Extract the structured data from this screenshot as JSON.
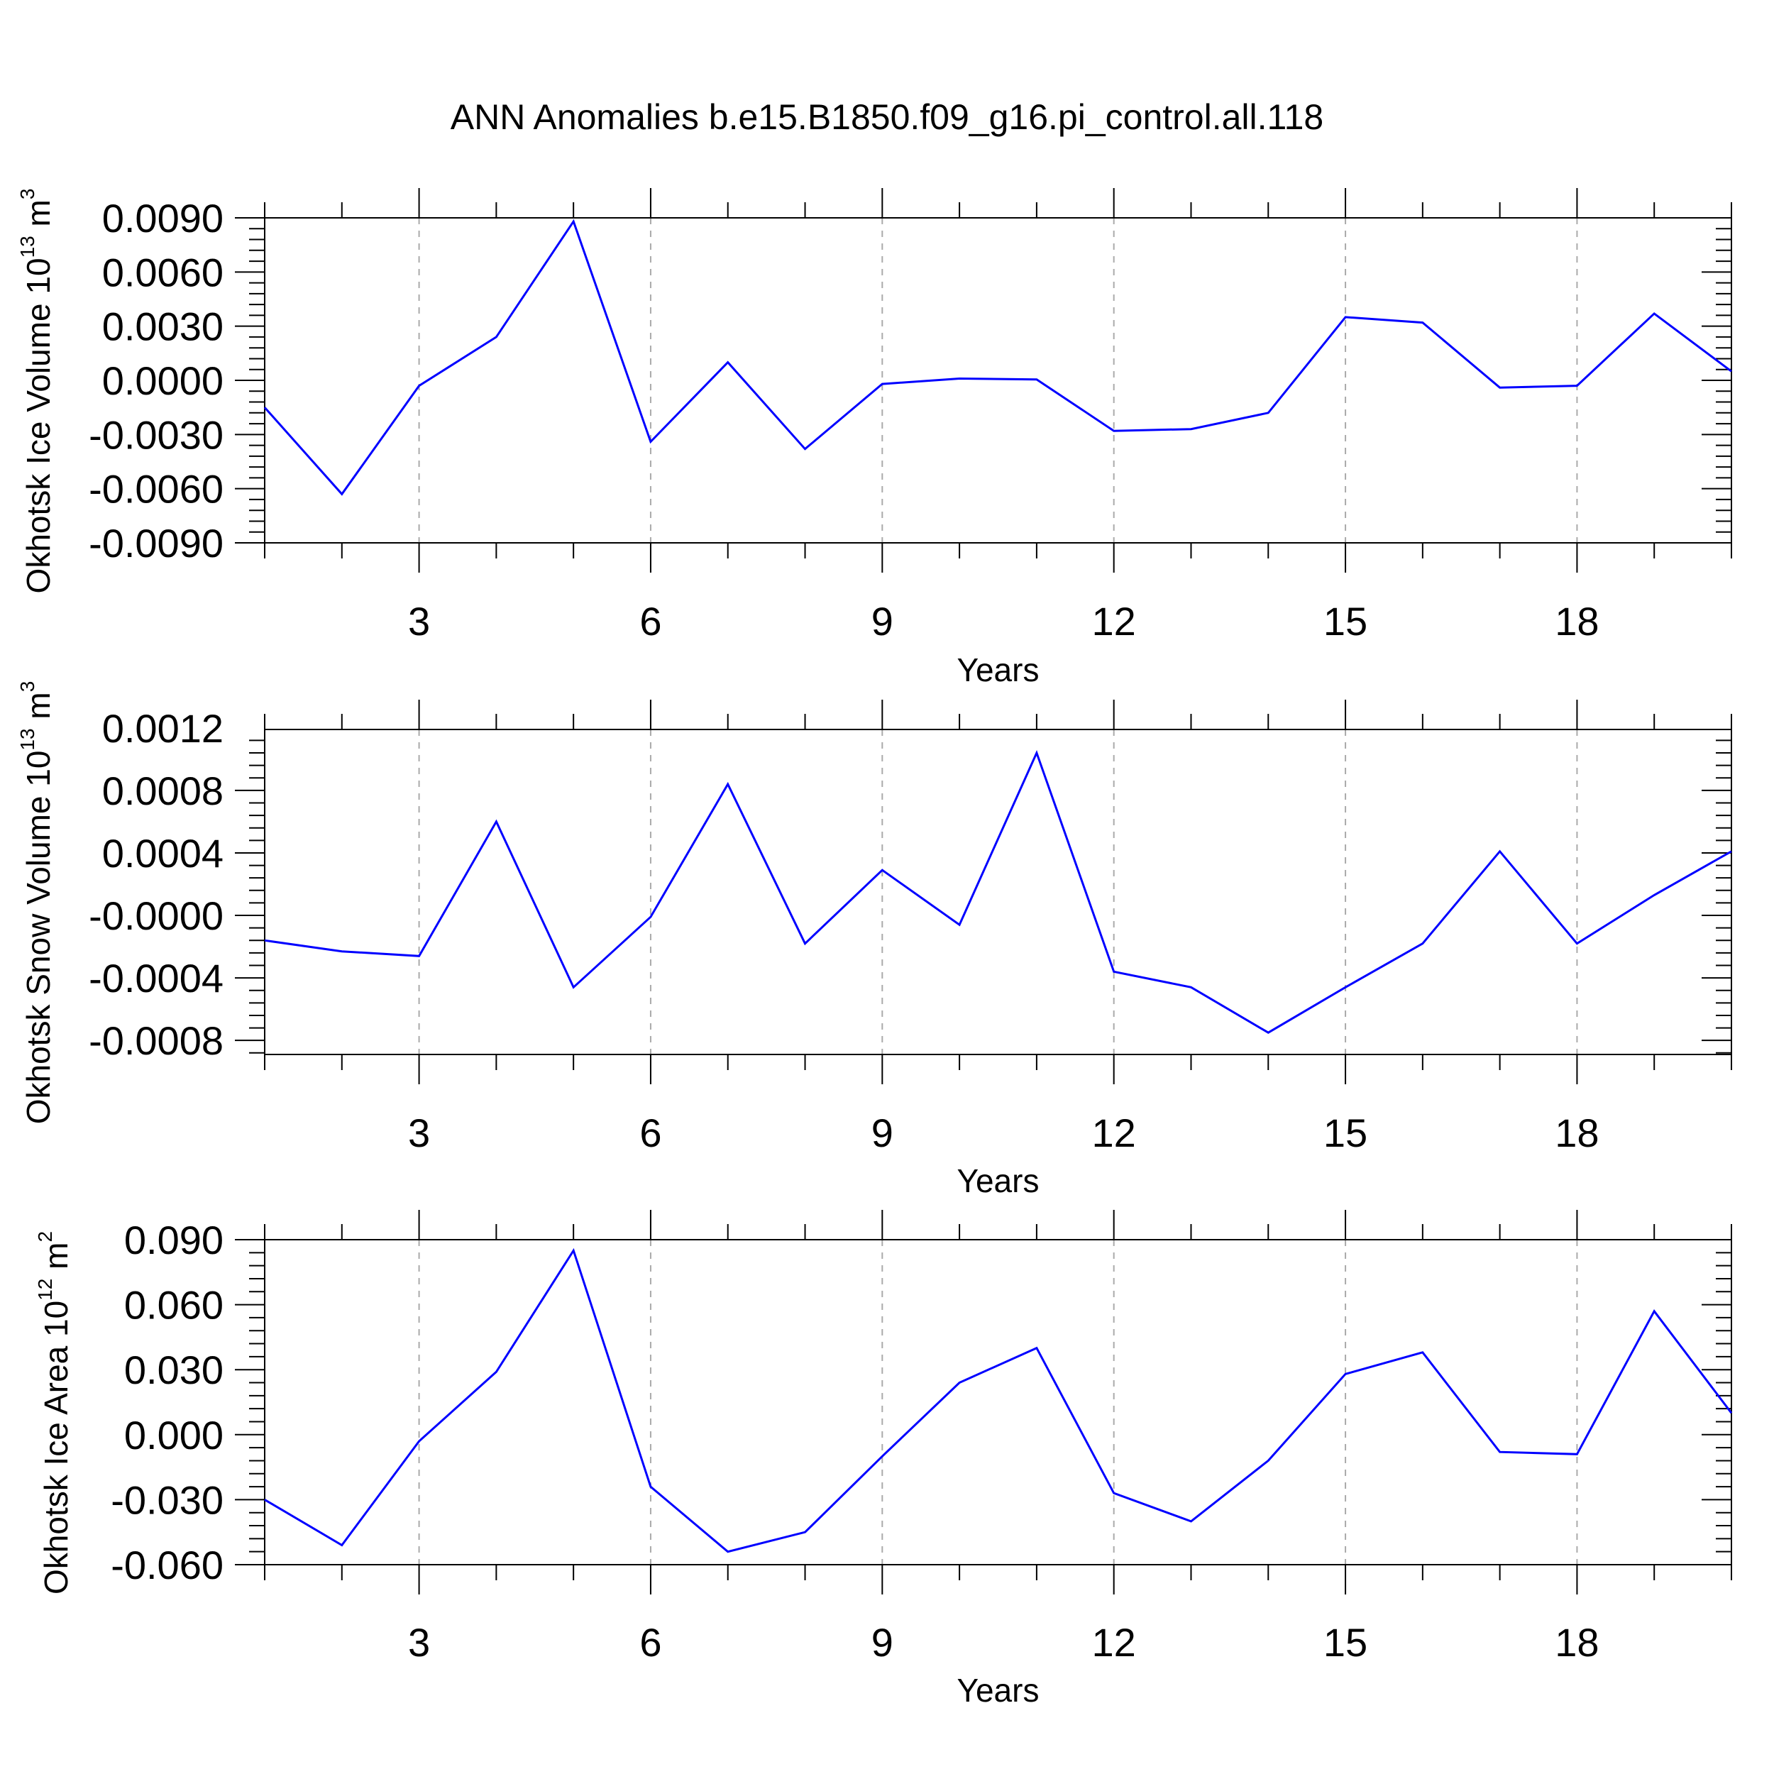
{
  "title": "ANN Anomalies b.e15.B1850.f09_g16.pi_control.all.118",
  "chart_data": [
    {
      "type": "line",
      "ylabel_main": "Okhotsk Ice Volume 10",
      "ylabel_exp": "13",
      "ylabel_unit": " m",
      "ylabel_unit_exp": "3",
      "xlabel": "Years",
      "xlim": [
        1,
        20
      ],
      "ylim": [
        -0.009,
        0.009
      ],
      "x_ticks": [
        3,
        6,
        9,
        12,
        15,
        18
      ],
      "x_tick_labels": [
        "3",
        "6",
        "9",
        "12",
        "15",
        "18"
      ],
      "y_ticks": [
        -0.009,
        -0.006,
        -0.003,
        0.0,
        0.003,
        0.006,
        0.009
      ],
      "y_tick_labels": [
        "-0.0090",
        "-0.0060",
        "-0.0030",
        "0.0000",
        "0.0030",
        "0.0060",
        "0.0090"
      ],
      "y_minor_step": 0.0006,
      "x": [
        1,
        2,
        3,
        4,
        5,
        6,
        7,
        8,
        9,
        10,
        11,
        12,
        13,
        14,
        15,
        16,
        17,
        18,
        19,
        20
      ],
      "values": [
        -0.0015,
        -0.0063,
        -0.0003,
        0.0024,
        0.0088,
        -0.0034,
        0.001,
        -0.0038,
        -0.0002,
        0.0001,
        5e-05,
        -0.0028,
        -0.0027,
        -0.0018,
        0.0035,
        0.0032,
        -0.0004,
        -0.0003,
        0.0037,
        0.0005
      ],
      "color": "#0000ff"
    },
    {
      "type": "line",
      "ylabel_main": "Okhotsk Snow Volume 10",
      "ylabel_exp": "13",
      "ylabel_unit": " m",
      "ylabel_unit_exp": "3",
      "xlabel": "Years",
      "xlim": [
        1,
        20
      ],
      "ylim": [
        -0.00089,
        0.00119
      ],
      "x_ticks": [
        3,
        6,
        9,
        12,
        15,
        18
      ],
      "x_tick_labels": [
        "3",
        "6",
        "9",
        "12",
        "15",
        "18"
      ],
      "y_ticks": [
        -0.0008,
        -0.0004,
        0.0,
        0.0004,
        0.0008,
        0.0012
      ],
      "y_tick_labels": [
        "-0.0008",
        "-0.0004",
        "-0.0000",
        "0.0004",
        "0.0008",
        "0.0012"
      ],
      "y_minor_step": 8e-05,
      "x": [
        1,
        2,
        3,
        4,
        5,
        6,
        7,
        8,
        9,
        10,
        11,
        12,
        13,
        14,
        15,
        16,
        17,
        18,
        19,
        20
      ],
      "values": [
        -0.00016,
        -0.00023,
        -0.00026,
        0.0006,
        -0.00046,
        -1e-05,
        0.00084,
        -0.00018,
        0.00029,
        -6e-05,
        0.00104,
        -0.00036,
        -0.00046,
        -0.00075,
        -0.00046,
        -0.00018,
        0.00041,
        -0.00018,
        0.00013,
        0.00041
      ],
      "color": "#0000ff"
    },
    {
      "type": "line",
      "ylabel_main": "Okhotsk Ice Area 10",
      "ylabel_exp": "12",
      "ylabel_unit": " m",
      "ylabel_unit_exp": "2",
      "xlabel": "Years",
      "xlim": [
        1,
        20
      ],
      "ylim": [
        -0.06,
        0.09
      ],
      "x_ticks": [
        3,
        6,
        9,
        12,
        15,
        18
      ],
      "x_tick_labels": [
        "3",
        "6",
        "9",
        "12",
        "15",
        "18"
      ],
      "y_ticks": [
        -0.06,
        -0.03,
        0.0,
        0.03,
        0.06,
        0.09
      ],
      "y_tick_labels": [
        "-0.060",
        "-0.030",
        "0.000",
        "0.030",
        "0.060",
        "0.090"
      ],
      "y_minor_step": 0.006,
      "x": [
        1,
        2,
        3,
        4,
        5,
        6,
        7,
        8,
        9,
        10,
        11,
        12,
        13,
        14,
        15,
        16,
        17,
        18,
        19,
        20
      ],
      "values": [
        -0.03,
        -0.051,
        -0.003,
        0.029,
        0.085,
        -0.024,
        -0.054,
        -0.045,
        -0.01,
        0.024,
        0.04,
        -0.027,
        -0.04,
        -0.012,
        0.028,
        0.038,
        -0.008,
        -0.009,
        0.057,
        0.01
      ],
      "color": "#0000ff"
    }
  ]
}
